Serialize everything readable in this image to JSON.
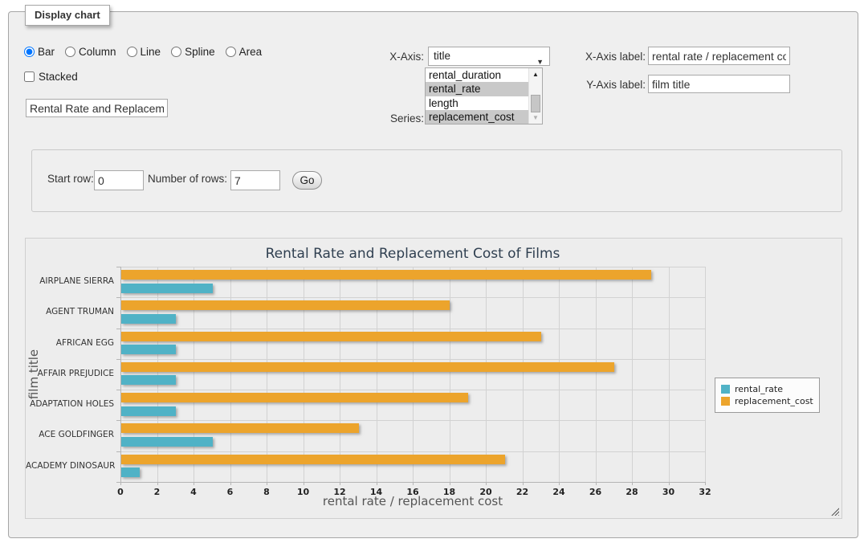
{
  "panel": {
    "legend_title": "Display chart"
  },
  "controls": {
    "chart_types": [
      {
        "label": "Bar",
        "selected": true
      },
      {
        "label": "Column",
        "selected": false
      },
      {
        "label": "Line",
        "selected": false
      },
      {
        "label": "Spline",
        "selected": false
      },
      {
        "label": "Area",
        "selected": false
      }
    ],
    "stacked": {
      "label": "Stacked",
      "checked": false
    },
    "chart_title_input": {
      "value": "Rental Rate and Replacement Cost of Films"
    },
    "x_axis": {
      "label": "X-Axis:",
      "selected_value": "title"
    },
    "series": {
      "label": "Series:",
      "options": [
        {
          "label": "rental_duration",
          "selected": false
        },
        {
          "label": "rental_rate",
          "selected": true
        },
        {
          "label": "length",
          "selected": false
        },
        {
          "label": "replacement_cost",
          "selected": true
        }
      ]
    },
    "x_axis_label": {
      "label": "X-Axis label:",
      "value": "rental rate / replacement cost"
    },
    "y_axis_label": {
      "label": "Y-Axis label:",
      "value": "film title"
    }
  },
  "row_form": {
    "start_row": {
      "label": "Start row:",
      "value": "0"
    },
    "number_of_rows": {
      "label": "Number of rows:",
      "value": "7"
    },
    "go_button": "Go"
  },
  "chart_data": {
    "type": "bar",
    "orientation": "horizontal",
    "title": "Rental Rate and Replacement Cost of Films",
    "xlabel": "rental rate / replacement cost",
    "ylabel": "film title",
    "categories": [
      "AIRPLANE SIERRA",
      "AGENT TRUMAN",
      "AFRICAN EGG",
      "AFFAIR PREJUDICE",
      "ADAPTATION HOLES",
      "ACE GOLDFINGER",
      "ACADEMY DINOSAUR"
    ],
    "series": [
      {
        "name": "rental_rate",
        "color": "#50B2C6",
        "values": [
          4.99,
          2.99,
          2.99,
          2.99,
          2.99,
          4.99,
          0.99
        ]
      },
      {
        "name": "replacement_cost",
        "color": "#ECA42C",
        "values": [
          28.99,
          17.99,
          22.99,
          26.99,
          18.99,
          12.99,
          20.99
        ]
      }
    ],
    "bar_row_order": [
      "replacement_cost",
      "rental_rate"
    ],
    "xlim": [
      0,
      32
    ],
    "x_tick_step": 2,
    "grid": true,
    "legend_position": "right"
  }
}
